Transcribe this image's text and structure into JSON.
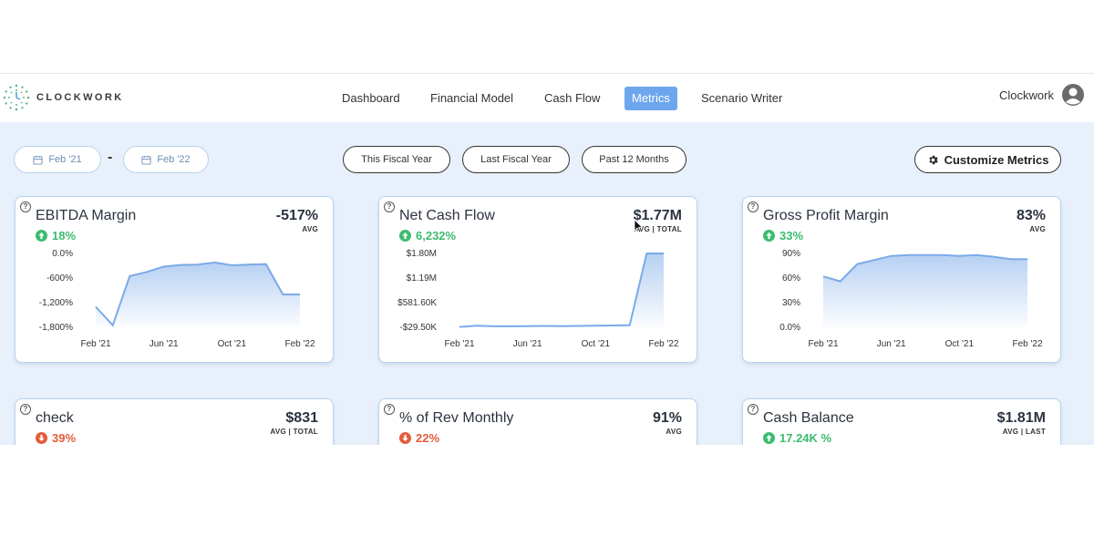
{
  "app": {
    "brand": "CLOCKWORK",
    "user_name": "Clockwork"
  },
  "nav": [
    {
      "label": "Dashboard",
      "active": false
    },
    {
      "label": "Financial Model",
      "active": false
    },
    {
      "label": "Cash Flow",
      "active": false
    },
    {
      "label": "Metrics",
      "active": true
    },
    {
      "label": "Scenario Writer",
      "active": false
    }
  ],
  "filters": {
    "start_date": "Feb '21",
    "end_date": "Feb '22",
    "separator": "-",
    "periods": [
      "This Fiscal Year",
      "Last Fiscal Year",
      "Past 12 Months"
    ],
    "customize_label": "Customize Metrics"
  },
  "icons": {
    "calendar": "calendar-icon",
    "gear": "gear-icon",
    "help": "help-icon",
    "avatar": "user-avatar-icon",
    "up": "arrow-up-icon",
    "down": "arrow-down-icon"
  },
  "colors": {
    "accent": "#6ea6ee",
    "up": "#3dbb6f",
    "down": "#e45c3a",
    "line": "#7aaae8"
  },
  "cards": [
    {
      "title": "EBITDA Margin",
      "value": "-517%",
      "sub": "AVG",
      "change": "18%",
      "direction": "up",
      "help": "?"
    },
    {
      "title": "Net Cash Flow",
      "value": "$1.77M",
      "sub": "AVG | TOTAL",
      "change": "6,232%",
      "direction": "up",
      "help": "?"
    },
    {
      "title": "Gross Profit Margin",
      "value": "83%",
      "sub": "AVG",
      "change": "33%",
      "direction": "up",
      "help": "?"
    },
    {
      "title": "check",
      "value": "$831",
      "sub": "AVG | TOTAL",
      "change": "39%",
      "direction": "down",
      "help": "?"
    },
    {
      "title": "% of Rev Monthly",
      "value": "91%",
      "sub": "AVG",
      "change": "22%",
      "direction": "down",
      "help": "?"
    },
    {
      "title": "Cash Balance",
      "value": "$1.81M",
      "sub": "AVG | LAST",
      "change": "17.24K %",
      "direction": "up",
      "help": "?"
    }
  ],
  "chart_data": [
    {
      "type": "area",
      "x_ticks": [
        "Feb '21",
        "Jun '21",
        "Oct '21",
        "Feb '22"
      ],
      "y_ticks": [
        "0.0%",
        "-600%",
        "-1,200%",
        "-1,800%"
      ],
      "ylim": [
        -1800,
        0
      ],
      "x": [
        0,
        1,
        2,
        3,
        4,
        5,
        6,
        7,
        8,
        9,
        10,
        11,
        12
      ],
      "values": [
        -1300,
        -1750,
        -550,
        -450,
        -320,
        -280,
        -270,
        -220,
        -290,
        -270,
        -260,
        -1000,
        -1000
      ],
      "grid": false
    },
    {
      "type": "area",
      "x_ticks": [
        "Feb '21",
        "Jun '21",
        "Oct '21",
        "Feb '22"
      ],
      "y_ticks": [
        "$1.80M",
        "$1.19M",
        "$581.60K",
        "-$29.50K"
      ],
      "ylim": [
        -29500,
        1800000
      ],
      "x": [
        0,
        1,
        2,
        3,
        4,
        5,
        6,
        7,
        8,
        9,
        10,
        11,
        12
      ],
      "values": [
        -20000,
        10000,
        -5000,
        -5000,
        0,
        5000,
        0,
        5000,
        10000,
        15000,
        20000,
        1800000,
        1800000
      ],
      "grid": false
    },
    {
      "type": "area",
      "x_ticks": [
        "Feb '21",
        "Jun '21",
        "Oct '21",
        "Feb '22"
      ],
      "y_ticks": [
        "90%",
        "60%",
        "30%",
        "0.0%"
      ],
      "ylim": [
        0,
        90
      ],
      "x": [
        0,
        1,
        2,
        3,
        4,
        5,
        6,
        7,
        8,
        9,
        10,
        11,
        12
      ],
      "values": [
        62,
        56,
        77,
        82,
        87,
        88,
        88,
        88,
        87,
        88,
        86,
        83,
        83
      ],
      "grid": false
    }
  ]
}
